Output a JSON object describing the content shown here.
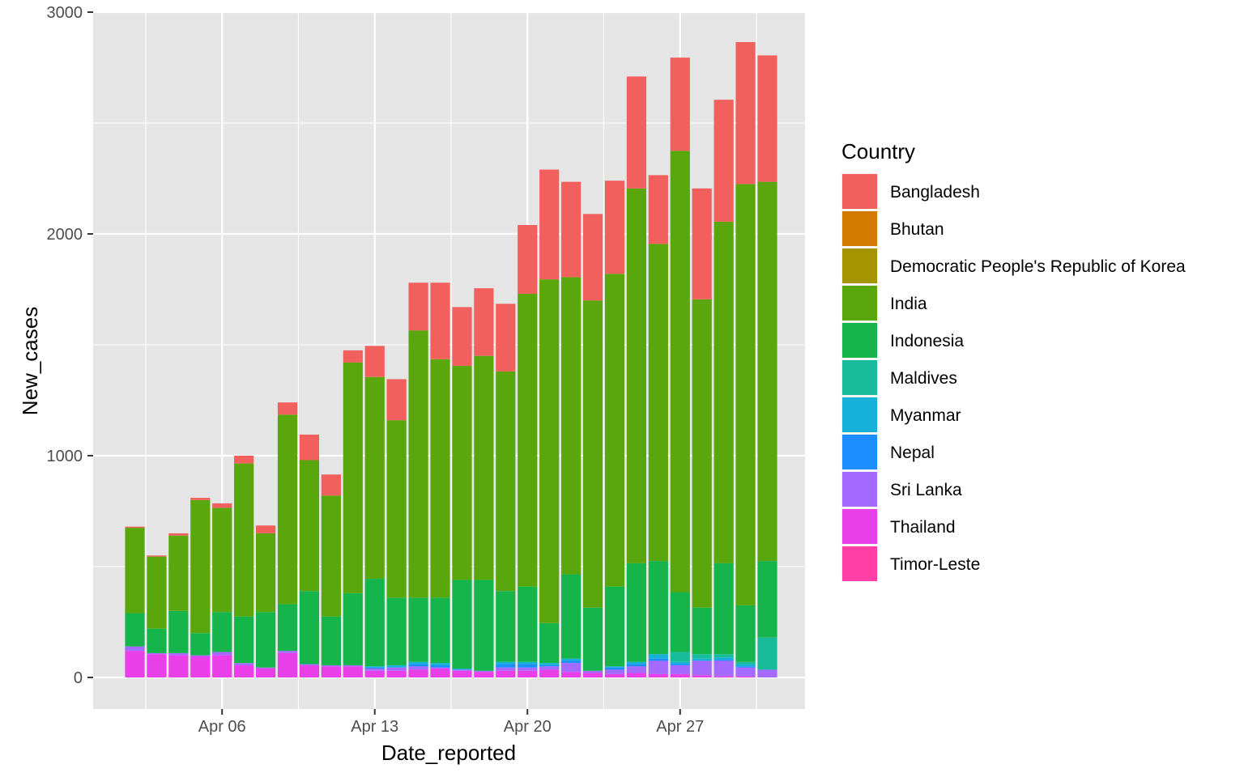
{
  "chart_data": {
    "type": "bar",
    "stacked": true,
    "title": "",
    "xlabel": "Date_reported",
    "ylabel": "New_cases",
    "ylim": [
      -130,
      3000
    ],
    "y_ticks": [
      0,
      1000,
      2000,
      3000
    ],
    "y_tick_labels": [
      "0",
      "1000",
      "2000",
      "3000"
    ],
    "x_tick_labels": [
      {
        "label": "Apr 06",
        "date": "2020-04-06"
      },
      {
        "label": "Apr 13",
        "date": "2020-04-13"
      },
      {
        "label": "Apr 20",
        "date": "2020-04-20"
      },
      {
        "label": "Apr 27",
        "date": "2020-04-27"
      }
    ],
    "x": [
      "2020-04-02",
      "2020-04-03",
      "2020-04-04",
      "2020-04-05",
      "2020-04-06",
      "2020-04-07",
      "2020-04-08",
      "2020-04-09",
      "2020-04-10",
      "2020-04-11",
      "2020-04-12",
      "2020-04-13",
      "2020-04-14",
      "2020-04-15",
      "2020-04-16",
      "2020-04-17",
      "2020-04-18",
      "2020-04-19",
      "2020-04-20",
      "2020-04-21",
      "2020-04-22",
      "2020-04-23",
      "2020-04-24",
      "2020-04-25",
      "2020-04-26",
      "2020-04-27",
      "2020-04-28",
      "2020-04-29",
      "2020-04-30",
      "2020-05-01"
    ],
    "grid": true,
    "background": "#e5e5e5",
    "legend": {
      "title": "Country",
      "position": "right"
    },
    "series": [
      {
        "name": "Timor-Leste",
        "color": "#FF3FA4",
        "values": [
          0,
          0,
          0,
          0,
          0,
          0,
          0,
          0,
          0,
          0,
          0,
          0,
          0,
          0,
          0,
          0,
          0,
          0,
          0,
          0,
          0,
          0,
          0,
          0,
          0,
          0,
          0,
          0,
          0,
          0
        ]
      },
      {
        "name": "Thailand",
        "color": "#E83FE8",
        "values": [
          120,
          105,
          100,
          95,
          100,
          55,
          40,
          110,
          55,
          50,
          50,
          30,
          30,
          35,
          40,
          30,
          25,
          30,
          30,
          35,
          25,
          20,
          15,
          20,
          15,
          15,
          10,
          5,
          5,
          0
        ]
      },
      {
        "name": "Sri Lanka",
        "color": "#A56AFF",
        "values": [
          20,
          5,
          10,
          5,
          15,
          10,
          5,
          10,
          5,
          5,
          5,
          10,
          15,
          15,
          5,
          5,
          5,
          15,
          15,
          15,
          40,
          10,
          20,
          30,
          60,
          40,
          65,
          70,
          40,
          35
        ]
      },
      {
        "name": "Nepal",
        "color": "#1C8EFF",
        "values": [
          0,
          0,
          0,
          0,
          0,
          0,
          0,
          0,
          0,
          0,
          0,
          5,
          0,
          10,
          10,
          0,
          0,
          15,
          15,
          5,
          10,
          0,
          10,
          10,
          10,
          5,
          0,
          5,
          5,
          0
        ]
      },
      {
        "name": "Myanmar",
        "color": "#16B0D8",
        "values": [
          0,
          0,
          0,
          0,
          0,
          0,
          0,
          0,
          0,
          0,
          0,
          5,
          10,
          10,
          10,
          5,
          0,
          10,
          10,
          10,
          10,
          0,
          5,
          10,
          20,
          10,
          10,
          10,
          10,
          0
        ]
      },
      {
        "name": "Maldives",
        "color": "#18BC9C",
        "values": [
          0,
          0,
          0,
          0,
          0,
          0,
          0,
          0,
          0,
          0,
          0,
          0,
          0,
          0,
          0,
          0,
          0,
          0,
          0,
          0,
          0,
          0,
          0,
          0,
          0,
          45,
          20,
          15,
          10,
          145
        ]
      },
      {
        "name": "Indonesia",
        "color": "#16B54B",
        "values": [
          150,
          110,
          190,
          100,
          180,
          210,
          250,
          210,
          330,
          220,
          325,
          395,
          305,
          290,
          295,
          400,
          410,
          320,
          340,
          180,
          380,
          285,
          360,
          445,
          420,
          270,
          210,
          410,
          255,
          345
        ]
      },
      {
        "name": "India",
        "color": "#59A70D",
        "values": [
          385,
          325,
          340,
          600,
          470,
          690,
          355,
          855,
          590,
          545,
          1040,
          910,
          800,
          1205,
          1075,
          965,
          1010,
          990,
          1320,
          1550,
          1340,
          1385,
          1410,
          1690,
          1430,
          1990,
          1390,
          1540,
          1900,
          1710
        ]
      },
      {
        "name": "Democratic People's Republic of Korea",
        "color": "#A39400",
        "values": [
          0,
          0,
          0,
          0,
          0,
          0,
          0,
          0,
          0,
          0,
          0,
          0,
          0,
          0,
          0,
          0,
          0,
          0,
          0,
          0,
          0,
          0,
          0,
          0,
          0,
          0,
          0,
          0,
          0,
          0
        ]
      },
      {
        "name": "Bhutan",
        "color": "#D37A00",
        "values": [
          0,
          0,
          0,
          0,
          0,
          0,
          0,
          0,
          0,
          0,
          0,
          0,
          0,
          0,
          0,
          0,
          0,
          0,
          0,
          0,
          0,
          0,
          0,
          0,
          0,
          0,
          0,
          0,
          0,
          0
        ]
      },
      {
        "name": "Bangladesh",
        "color": "#F2605E",
        "values": [
          5,
          5,
          10,
          10,
          20,
          35,
          35,
          55,
          115,
          95,
          55,
          140,
          185,
          215,
          345,
          265,
          305,
          305,
          310,
          495,
          430,
          390,
          420,
          505,
          310,
          420,
          500,
          550,
          640,
          570
        ]
      }
    ],
    "legend_order": [
      "Bangladesh",
      "Bhutan",
      "Democratic People's Republic of Korea",
      "India",
      "Indonesia",
      "Maldives",
      "Myanmar",
      "Nepal",
      "Sri Lanka",
      "Thailand",
      "Timor-Leste"
    ]
  }
}
